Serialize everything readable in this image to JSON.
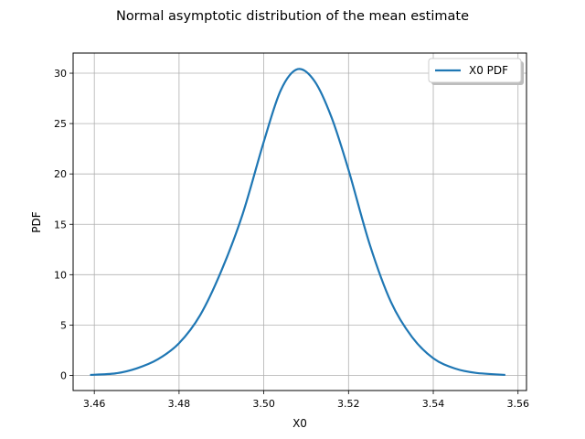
{
  "chart_data": {
    "type": "line",
    "title": "Normal asymptotic distribution of the mean estimate",
    "xlabel": "X0",
    "ylabel": "PDF",
    "xlim": [
      3.455,
      3.562
    ],
    "ylim": [
      -1.5,
      32
    ],
    "xticks": [
      3.46,
      3.48,
      3.5,
      3.52,
      3.54,
      3.56
    ],
    "xtick_labels": [
      "3.46",
      "3.48",
      "3.50",
      "3.52",
      "3.54",
      "3.56"
    ],
    "yticks": [
      0,
      5,
      10,
      15,
      20,
      25,
      30
    ],
    "ytick_labels": [
      "0",
      "5",
      "10",
      "15",
      "20",
      "25",
      "30"
    ],
    "grid": true,
    "legend_position": "top-right",
    "series": [
      {
        "name": "X0 PDF",
        "color": "#1f77b4",
        "x": [
          3.459,
          3.465,
          3.47,
          3.475,
          3.48,
          3.485,
          3.49,
          3.495,
          3.5,
          3.504,
          3.508,
          3.512,
          3.516,
          3.52,
          3.525,
          3.53,
          3.535,
          3.54,
          3.545,
          3.55,
          3.557
        ],
        "y": [
          0.05,
          0.2,
          0.7,
          1.6,
          3.2,
          6.0,
          10.4,
          16.0,
          23.2,
          28.3,
          30.4,
          29.2,
          25.6,
          20.4,
          13.0,
          7.3,
          3.8,
          1.7,
          0.7,
          0.25,
          0.05
        ]
      }
    ]
  }
}
